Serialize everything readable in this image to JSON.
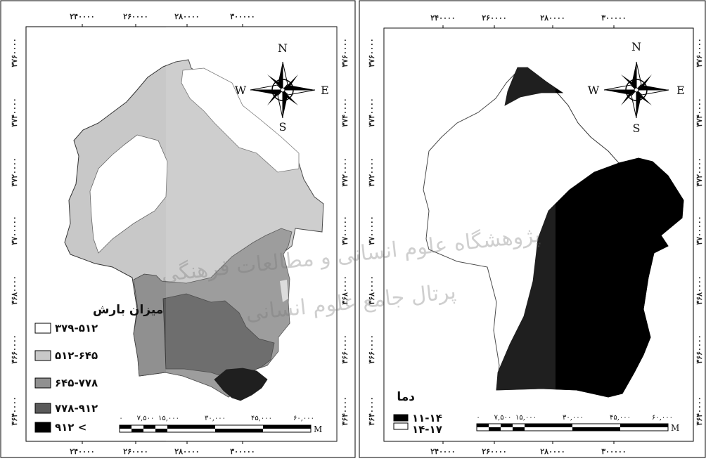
{
  "maps": [
    {
      "x_ticks": [
        "۲۴۰۰۰۰",
        "۲۶۰۰۰۰",
        "۲۸۰۰۰۰",
        "۳۰۰۰۰۰"
      ],
      "y_ticks": [
        "۳۷۶۰۰۰۰",
        "۳۷۴۰۰۰۰",
        "۳۷۲۰۰۰۰",
        "۳۷۰۰۰۰۰",
        "۳۶۸۰۰۰۰",
        "۳۶۶۰۰۰۰",
        "۳۶۴۰۰۰۰"
      ],
      "compass": {
        "n": "N",
        "s": "S",
        "e": "E",
        "w": "W"
      },
      "legend": {
        "title": "میزان بارش",
        "items": [
          {
            "label": "۳۷۹-۵۱۲",
            "color": "#ffffff"
          },
          {
            "label": "۵۱۲-۶۴۵",
            "color": "#c8c8c8"
          },
          {
            "label": "۶۴۵-۷۷۸",
            "color": "#909090"
          },
          {
            "label": "۷۷۸-۹۱۲",
            "color": "#5a5a5a"
          },
          {
            "label": "۹۱۲ <",
            "color": "#000000"
          }
        ]
      },
      "scale": {
        "labels": [
          "۰",
          "۷,۵۰۰",
          "۱۵,۰۰۰",
          "۳۰,۰۰۰",
          "۴۵,۰۰۰",
          "۶۰,۰۰۰"
        ],
        "unit": "M"
      }
    },
    {
      "x_ticks": [
        "۲۴۰۰۰۰",
        "۲۶۰۰۰۰",
        "۲۸۰۰۰۰",
        "۳۰۰۰۰۰"
      ],
      "y_ticks": [
        "۳۷۶۰۰۰۰",
        "۳۷۴۰۰۰۰",
        "۳۷۲۰۰۰۰",
        "۳۷۰۰۰۰۰",
        "۳۶۸۰۰۰۰",
        "۳۶۶۰۰۰۰",
        "۳۶۴۰۰۰۰"
      ],
      "compass": {
        "n": "N",
        "s": "S",
        "e": "E",
        "w": "W"
      },
      "legend": {
        "title": "دما",
        "items": [
          {
            "label": "۱۱-۱۴",
            "color": "#000000"
          },
          {
            "label": "۱۴-۱۷",
            "color": "#ffffff"
          }
        ]
      },
      "scale": {
        "labels": [
          "۰",
          "۷,۵۰۰",
          "۱۵,۰۰۰",
          "۳۰,۰۰۰",
          "۴۵,۰۰۰",
          "۶۰,۰۰۰"
        ],
        "unit": "M"
      }
    }
  ],
  "watermark": {
    "line1": "پژوهشگاه علوم انسانی و مطالعات فرهنگی",
    "line2": "پرتال جامع علوم انسانی"
  }
}
